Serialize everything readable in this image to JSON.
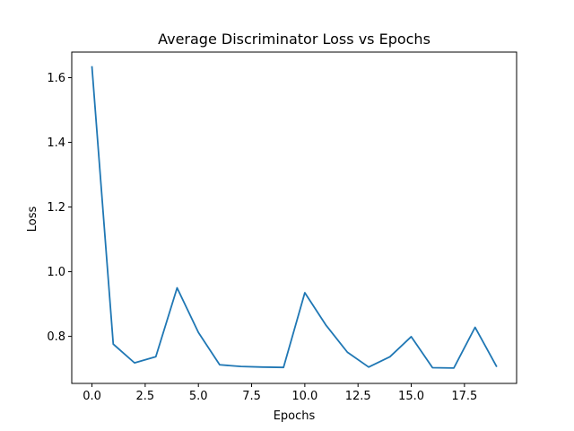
{
  "chart_data": {
    "type": "line",
    "title": "Average Discriminator Loss vs Epochs",
    "xlabel": "Epochs",
    "ylabel": "Loss",
    "xlim": [
      -0.95,
      19.95
    ],
    "ylim": [
      0.6545,
      1.6792
    ],
    "xticks": [
      0,
      2.5,
      5,
      7.5,
      10,
      12.5,
      15,
      17.5
    ],
    "xtick_labels": [
      "0.0",
      "2.5",
      "5.0",
      "7.5",
      "10.0",
      "12.5",
      "15.0",
      "17.5"
    ],
    "yticks": [
      0.8,
      1.0,
      1.2,
      1.4,
      1.6
    ],
    "ytick_labels": [
      "0.8",
      "1.0",
      "1.2",
      "1.4",
      "1.6"
    ],
    "grid": false,
    "legend": "none",
    "series": [
      {
        "color": "#1f77b4",
        "x": [
          0,
          1,
          2,
          3,
          4,
          5,
          6,
          7,
          8,
          9,
          10,
          11,
          12,
          13,
          14,
          15,
          16,
          17,
          18,
          19
        ],
        "y": [
          1.633,
          0.776,
          0.718,
          0.737,
          0.95,
          0.812,
          0.712,
          0.707,
          0.705,
          0.704,
          0.935,
          0.834,
          0.751,
          0.705,
          0.737,
          0.799,
          0.703,
          0.702,
          0.828,
          0.708
        ]
      }
    ]
  }
}
